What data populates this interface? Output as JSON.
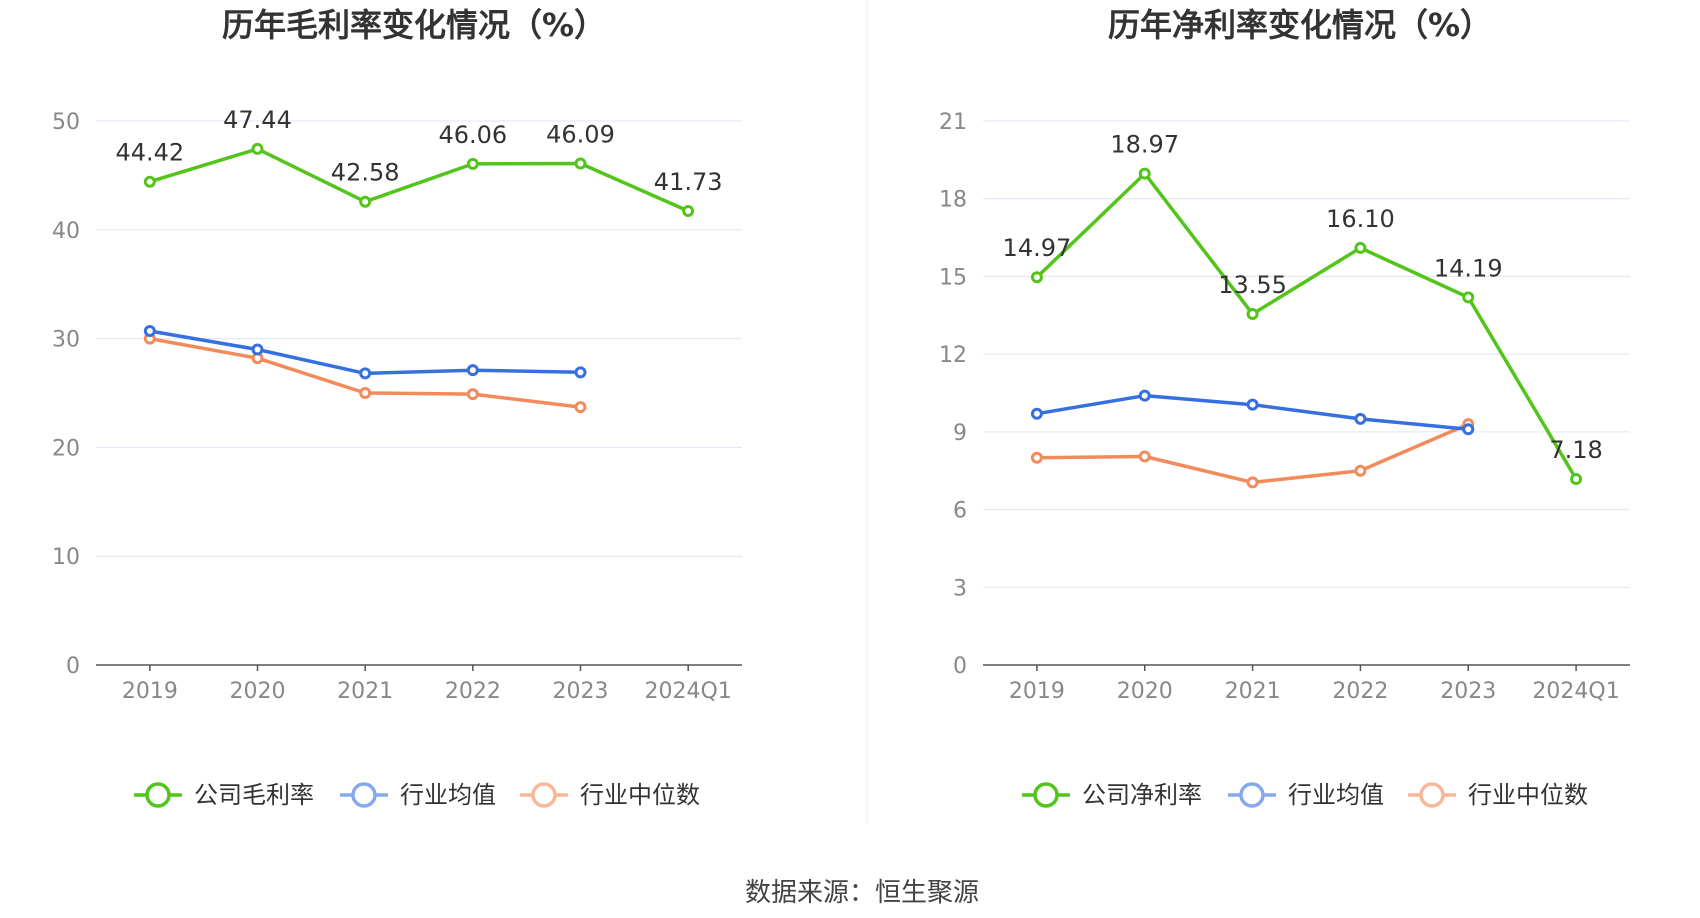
{
  "chart_data": [
    {
      "type": "line",
      "title": "历年毛利率变化情况（%）",
      "categories": [
        "2019",
        "2020",
        "2021",
        "2022",
        "2023",
        "2024Q1"
      ],
      "ylim": [
        0,
        50
      ],
      "yticks": [
        0,
        10,
        20,
        30,
        40,
        50
      ],
      "grid": true,
      "legend_position": "bottom",
      "series": [
        {
          "name": "公司毛利率",
          "color": "#52c41a",
          "labels": true,
          "values": [
            44.42,
            47.44,
            42.58,
            46.06,
            46.09,
            41.73
          ]
        },
        {
          "name": "行业均值",
          "color": "#3670e0",
          "labels": false,
          "values": [
            30.7,
            29.0,
            26.8,
            27.1,
            26.9,
            null
          ]
        },
        {
          "name": "行业中位数",
          "color": "#f38a5a",
          "labels": false,
          "values": [
            30.0,
            28.2,
            25.0,
            24.9,
            23.7,
            null
          ]
        }
      ]
    },
    {
      "type": "line",
      "title": "历年净利率变化情况（%）",
      "categories": [
        "2019",
        "2020",
        "2021",
        "2022",
        "2023",
        "2024Q1"
      ],
      "ylim": [
        0,
        21
      ],
      "yticks": [
        0,
        3,
        6,
        9,
        12,
        15,
        18,
        21
      ],
      "grid": true,
      "legend_position": "bottom",
      "series": [
        {
          "name": "公司净利率",
          "color": "#52c41a",
          "labels": true,
          "values": [
            14.97,
            18.97,
            13.55,
            16.1,
            14.19,
            7.18
          ]
        },
        {
          "name": "行业均值",
          "color": "#3670e0",
          "labels": false,
          "values": [
            9.7,
            10.4,
            10.05,
            9.5,
            9.1,
            null
          ]
        },
        {
          "name": "行业中位数",
          "color": "#f38a5a",
          "labels": false,
          "values": [
            8.0,
            8.05,
            7.05,
            7.5,
            9.3,
            null
          ]
        }
      ]
    }
  ],
  "footer": {
    "source": "数据来源：恒生聚源"
  },
  "legend_colors": {
    "company": "#52c41a",
    "avg": "#88a8ee",
    "median": "#f7b89a"
  }
}
